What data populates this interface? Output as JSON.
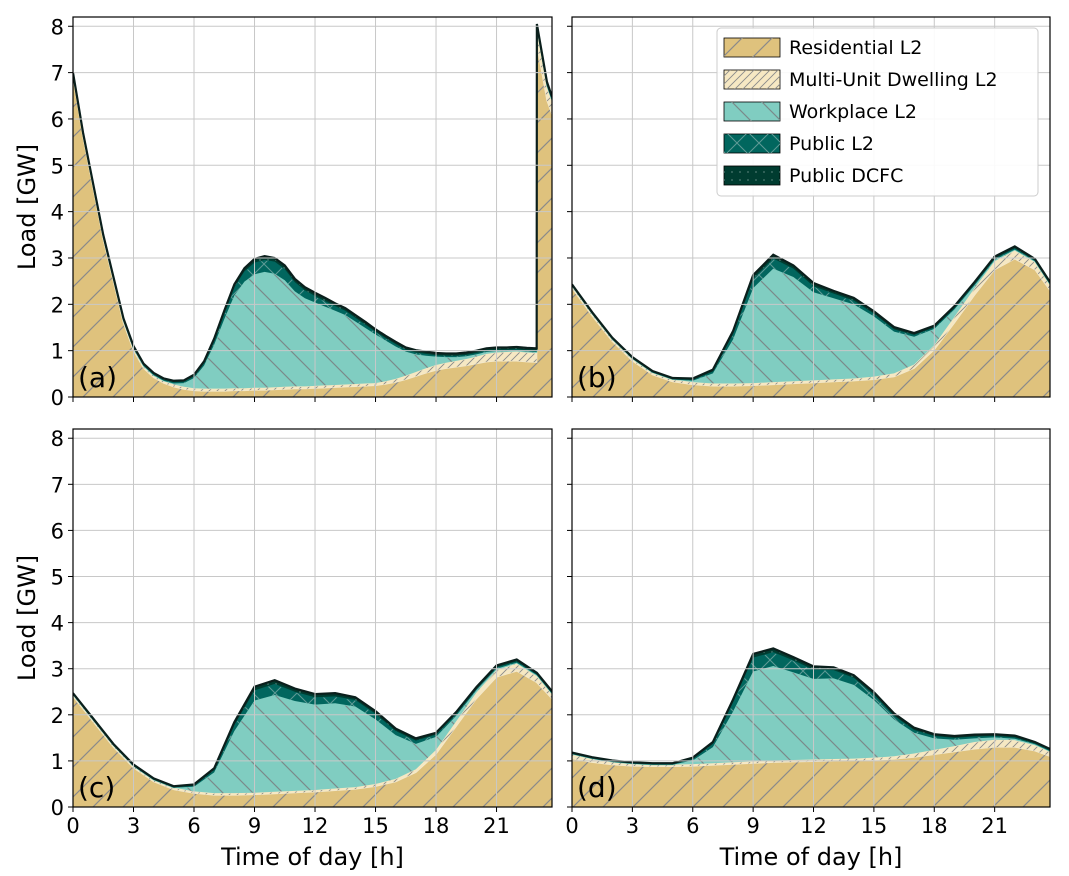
{
  "colors": {
    "residential": "#dfc27d",
    "multi_unit": "#f6e8c3",
    "workplace": "#80cdc1",
    "public_l2": "#01665e",
    "public_dcfc": "#003c30",
    "hatch": "#8a8a8a",
    "grid": "#c8c8c8"
  },
  "legend": {
    "items": [
      {
        "label": "Residential L2",
        "key": "residential",
        "hatch": "diag"
      },
      {
        "label": "Multi-Unit Dwelling L2",
        "key": "multi_unit",
        "hatch": "diag"
      },
      {
        "label": "Workplace L2",
        "key": "workplace",
        "hatch": "back"
      },
      {
        "label": "Public L2",
        "key": "public_l2",
        "hatch": "cross"
      },
      {
        "label": "Public DCFC",
        "key": "public_dcfc",
        "hatch": "dots"
      }
    ]
  },
  "axes": {
    "xlabel": "Time of day [h]",
    "ylabel": "Load [GW]",
    "xticks": [
      0,
      3,
      6,
      9,
      12,
      15,
      18,
      21
    ],
    "yticks": [
      0,
      1,
      2,
      3,
      4,
      5,
      6,
      7,
      8
    ],
    "xlim": [
      0,
      23.75
    ],
    "ylim": [
      0,
      8.2
    ]
  },
  "chart_data": [
    {
      "panel": "(a)",
      "type": "area",
      "stacked": true,
      "x": [
        0,
        0.5,
        1,
        1.5,
        2,
        2.5,
        3,
        3.5,
        4,
        4.5,
        5,
        5.5,
        6,
        6.5,
        7,
        7.5,
        8,
        8.5,
        9,
        9.5,
        10,
        10.5,
        11,
        11.5,
        12,
        12.5,
        13,
        13.5,
        14,
        14.5,
        15,
        15.5,
        16,
        16.5,
        17,
        17.5,
        18,
        18.5,
        19,
        19.5,
        20,
        20.5,
        21,
        21.5,
        22,
        22.5,
        22.99,
        23,
        23.5,
        23.75
      ],
      "series": [
        {
          "name": "Residential L2",
          "values": [
            6.9,
            5.6,
            4.5,
            3.4,
            2.5,
            1.6,
            1.0,
            0.62,
            0.42,
            0.3,
            0.22,
            0.17,
            0.14,
            0.13,
            0.13,
            0.13,
            0.14,
            0.14,
            0.15,
            0.15,
            0.16,
            0.17,
            0.18,
            0.18,
            0.19,
            0.2,
            0.21,
            0.22,
            0.23,
            0.24,
            0.25,
            0.28,
            0.32,
            0.38,
            0.45,
            0.52,
            0.58,
            0.62,
            0.65,
            0.68,
            0.72,
            0.76,
            0.78,
            0.78,
            0.78,
            0.76,
            0.75,
            7.6,
            6.4,
            6.1
          ]
        },
        {
          "name": "Multi-Unit Dwelling L2",
          "values": [
            0.05,
            0.05,
            0.05,
            0.05,
            0.05,
            0.05,
            0.05,
            0.05,
            0.05,
            0.05,
            0.05,
            0.05,
            0.05,
            0.05,
            0.05,
            0.05,
            0.05,
            0.05,
            0.05,
            0.05,
            0.05,
            0.05,
            0.05,
            0.05,
            0.05,
            0.05,
            0.05,
            0.05,
            0.05,
            0.05,
            0.05,
            0.06,
            0.07,
            0.08,
            0.09,
            0.1,
            0.11,
            0.12,
            0.13,
            0.14,
            0.15,
            0.17,
            0.18,
            0.19,
            0.2,
            0.2,
            0.2,
            0.35,
            0.3,
            0.28
          ]
        },
        {
          "name": "Workplace L2",
          "values": [
            0,
            0,
            0,
            0,
            0,
            0,
            0,
            0,
            0,
            0,
            0.02,
            0.08,
            0.22,
            0.5,
            0.95,
            1.5,
            2.0,
            2.3,
            2.45,
            2.5,
            2.45,
            2.3,
            2.05,
            1.9,
            1.8,
            1.7,
            1.6,
            1.5,
            1.35,
            1.2,
            1.05,
            0.88,
            0.7,
            0.52,
            0.38,
            0.27,
            0.18,
            0.12,
            0.08,
            0.06,
            0.05,
            0.04,
            0.03,
            0.02,
            0.02,
            0.02,
            0.02,
            0.02,
            0.02,
            0.02
          ]
        },
        {
          "name": "Public L2",
          "values": [
            0.02,
            0.02,
            0.02,
            0.02,
            0.02,
            0.02,
            0.02,
            0.02,
            0.02,
            0.02,
            0.03,
            0.03,
            0.04,
            0.06,
            0.09,
            0.13,
            0.18,
            0.22,
            0.25,
            0.26,
            0.26,
            0.24,
            0.2,
            0.17,
            0.14,
            0.12,
            0.1,
            0.09,
            0.08,
            0.07,
            0.06,
            0.05,
            0.05,
            0.04,
            0.04,
            0.04,
            0.03,
            0.03,
            0.03,
            0.03,
            0.03,
            0.03,
            0.03,
            0.03,
            0.03,
            0.03,
            0.03,
            0.03,
            0.03,
            0.03
          ]
        },
        {
          "name": "Public DCFC",
          "values": [
            0.03,
            0.03,
            0.03,
            0.03,
            0.03,
            0.03,
            0.03,
            0.03,
            0.03,
            0.03,
            0.03,
            0.03,
            0.03,
            0.03,
            0.04,
            0.05,
            0.06,
            0.07,
            0.08,
            0.08,
            0.08,
            0.08,
            0.07,
            0.07,
            0.07,
            0.07,
            0.06,
            0.06,
            0.06,
            0.06,
            0.05,
            0.05,
            0.05,
            0.05,
            0.05,
            0.05,
            0.05,
            0.05,
            0.05,
            0.05,
            0.05,
            0.05,
            0.05,
            0.05,
            0.05,
            0.05,
            0.05,
            0.05,
            0.05,
            0.05
          ]
        }
      ]
    },
    {
      "panel": "(b)",
      "type": "area",
      "stacked": true,
      "x": [
        0,
        1,
        2,
        3,
        4,
        5,
        6,
        7,
        8,
        9,
        10,
        11,
        12,
        13,
        14,
        15,
        16,
        17,
        18,
        19,
        20,
        21,
        22,
        23,
        23.75
      ],
      "series": [
        {
          "name": "Residential L2",
          "values": [
            2.35,
            1.75,
            1.2,
            0.78,
            0.48,
            0.33,
            0.27,
            0.24,
            0.24,
            0.25,
            0.27,
            0.29,
            0.31,
            0.33,
            0.35,
            0.38,
            0.44,
            0.62,
            1.02,
            1.6,
            2.2,
            2.75,
            2.98,
            2.75,
            2.3
          ]
        },
        {
          "name": "Multi-Unit Dwelling L2",
          "values": [
            0.05,
            0.05,
            0.05,
            0.05,
            0.05,
            0.05,
            0.05,
            0.05,
            0.05,
            0.05,
            0.05,
            0.05,
            0.05,
            0.05,
            0.05,
            0.06,
            0.07,
            0.08,
            0.1,
            0.13,
            0.15,
            0.18,
            0.18,
            0.16,
            0.12
          ]
        },
        {
          "name": "Workplace L2",
          "values": [
            0,
            0,
            0,
            0,
            0,
            0,
            0.03,
            0.22,
            0.95,
            2.05,
            2.45,
            2.25,
            1.9,
            1.75,
            1.6,
            1.3,
            0.9,
            0.6,
            0.35,
            0.16,
            0.06,
            0.03,
            0.02,
            0.02,
            0.01
          ]
        },
        {
          "name": "Public L2",
          "values": [
            0.01,
            0.01,
            0.01,
            0.01,
            0.01,
            0.01,
            0.02,
            0.04,
            0.12,
            0.2,
            0.22,
            0.18,
            0.13,
            0.1,
            0.08,
            0.06,
            0.05,
            0.04,
            0.03,
            0.03,
            0.03,
            0.03,
            0.03,
            0.02,
            0.02
          ]
        },
        {
          "name": "Public DCFC",
          "values": [
            0.02,
            0.02,
            0.02,
            0.02,
            0.02,
            0.02,
            0.03,
            0.04,
            0.06,
            0.08,
            0.08,
            0.07,
            0.07,
            0.06,
            0.06,
            0.05,
            0.05,
            0.04,
            0.04,
            0.04,
            0.04,
            0.04,
            0.04,
            0.03,
            0.03
          ]
        }
      ]
    },
    {
      "panel": "(c)",
      "type": "area",
      "stacked": true,
      "x": [
        0,
        1,
        2,
        3,
        4,
        5,
        6,
        7,
        8,
        9,
        10,
        11,
        12,
        13,
        14,
        15,
        16,
        17,
        18,
        19,
        20,
        21,
        22,
        23,
        23.75
      ],
      "series": [
        {
          "name": "Residential L2",
          "values": [
            2.4,
            1.85,
            1.3,
            0.85,
            0.55,
            0.38,
            0.3,
            0.26,
            0.26,
            0.27,
            0.29,
            0.31,
            0.33,
            0.36,
            0.39,
            0.45,
            0.55,
            0.75,
            1.15,
            1.75,
            2.35,
            2.82,
            2.95,
            2.7,
            2.35
          ]
        },
        {
          "name": "Multi-Unit Dwelling L2",
          "values": [
            0.04,
            0.04,
            0.04,
            0.04,
            0.04,
            0.04,
            0.04,
            0.04,
            0.04,
            0.04,
            0.04,
            0.04,
            0.04,
            0.04,
            0.04,
            0.05,
            0.06,
            0.07,
            0.09,
            0.11,
            0.13,
            0.15,
            0.16,
            0.14,
            0.1
          ]
        },
        {
          "name": "Workplace L2",
          "values": [
            0,
            0,
            0,
            0,
            0,
            0,
            0.1,
            0.45,
            1.35,
            2.0,
            2.1,
            1.95,
            1.85,
            1.85,
            1.75,
            1.4,
            0.95,
            0.55,
            0.28,
            0.12,
            0.05,
            0.03,
            0.02,
            0.02,
            0.01
          ]
        },
        {
          "name": "Public L2",
          "values": [
            0.01,
            0.01,
            0.01,
            0.01,
            0.01,
            0.01,
            0.02,
            0.05,
            0.13,
            0.22,
            0.24,
            0.2,
            0.16,
            0.15,
            0.14,
            0.12,
            0.09,
            0.07,
            0.05,
            0.04,
            0.03,
            0.03,
            0.03,
            0.02,
            0.02
          ]
        },
        {
          "name": "Public DCFC",
          "values": [
            0.02,
            0.02,
            0.02,
            0.02,
            0.02,
            0.02,
            0.03,
            0.04,
            0.06,
            0.08,
            0.08,
            0.07,
            0.07,
            0.07,
            0.06,
            0.06,
            0.05,
            0.05,
            0.04,
            0.04,
            0.04,
            0.04,
            0.04,
            0.03,
            0.03
          ]
        }
      ]
    },
    {
      "panel": "(d)",
      "type": "area",
      "stacked": true,
      "x": [
        0,
        1,
        2,
        3,
        4,
        5,
        6,
        7,
        8,
        9,
        10,
        11,
        12,
        13,
        14,
        15,
        16,
        17,
        18,
        19,
        20,
        21,
        22,
        23,
        23.75
      ],
      "series": [
        {
          "name": "Residential L2",
          "values": [
            1.05,
            0.97,
            0.92,
            0.89,
            0.88,
            0.88,
            0.89,
            0.91,
            0.93,
            0.95,
            0.97,
            0.98,
            0.99,
            1.0,
            1.01,
            1.02,
            1.04,
            1.08,
            1.14,
            1.2,
            1.26,
            1.3,
            1.3,
            1.22,
            1.1
          ]
        },
        {
          "name": "Multi-Unit Dwelling L2",
          "values": [
            0.1,
            0.08,
            0.06,
            0.05,
            0.04,
            0.04,
            0.04,
            0.04,
            0.04,
            0.04,
            0.04,
            0.04,
            0.04,
            0.04,
            0.04,
            0.05,
            0.06,
            0.08,
            0.1,
            0.12,
            0.15,
            0.16,
            0.15,
            0.12,
            0.1
          ]
        },
        {
          "name": "Workplace L2",
          "values": [
            0,
            0,
            0,
            0,
            0,
            0,
            0.08,
            0.35,
            1.1,
            1.95,
            2.05,
            1.9,
            1.75,
            1.75,
            1.6,
            1.25,
            0.8,
            0.45,
            0.25,
            0.14,
            0.08,
            0.05,
            0.03,
            0.02,
            0.01
          ]
        },
        {
          "name": "Public L2",
          "values": [
            0.01,
            0.01,
            0.01,
            0.01,
            0.01,
            0.01,
            0.03,
            0.07,
            0.2,
            0.3,
            0.3,
            0.26,
            0.2,
            0.18,
            0.15,
            0.12,
            0.08,
            0.06,
            0.05,
            0.04,
            0.04,
            0.03,
            0.03,
            0.02,
            0.02
          ]
        },
        {
          "name": "Public DCFC",
          "values": [
            0.02,
            0.02,
            0.02,
            0.02,
            0.02,
            0.02,
            0.03,
            0.04,
            0.06,
            0.08,
            0.08,
            0.07,
            0.07,
            0.06,
            0.06,
            0.05,
            0.05,
            0.05,
            0.04,
            0.04,
            0.04,
            0.04,
            0.04,
            0.03,
            0.03
          ]
        }
      ]
    }
  ]
}
